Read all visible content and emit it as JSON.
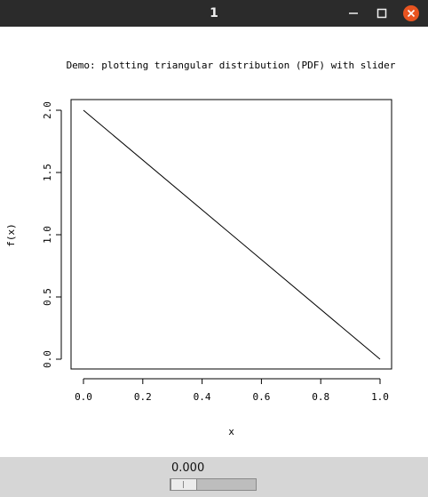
{
  "window": {
    "title": "1"
  },
  "chart_data": {
    "type": "line",
    "title": "Demo: plotting triangular distribution (PDF) with slider",
    "xlabel": "x",
    "ylabel": "f(x)",
    "xlim": [
      0.0,
      1.0
    ],
    "ylim": [
      0.0,
      2.0
    ],
    "x_ticks": [
      "0.0",
      "0.2",
      "0.4",
      "0.6",
      "0.8",
      "1.0"
    ],
    "y_ticks": [
      "0.0",
      "0.5",
      "1.0",
      "1.5",
      "2.0"
    ],
    "grid": false,
    "series": [
      {
        "x": [
          0.0,
          1.0
        ],
        "y": [
          2.0,
          0.0
        ]
      }
    ]
  },
  "slider": {
    "value_label": "0.000",
    "value": 0.0
  }
}
